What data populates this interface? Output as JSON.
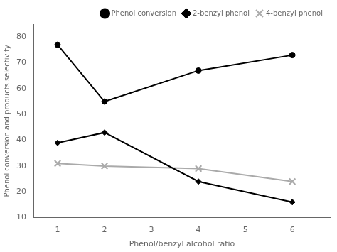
{
  "chart_data": {
    "type": "line",
    "xlabel": "Phenol/benzyl alcohol ratio",
    "ylabel": "Phenol conversion and products selectivity",
    "x": [
      1,
      2,
      4,
      6
    ],
    "series": [
      {
        "name": "Phenol conversion",
        "color": "#000000",
        "marker": "circle",
        "values": [
          77,
          55,
          67,
          73
        ]
      },
      {
        "name": "2-benzyl phenol",
        "color": "#000000",
        "marker": "diamond",
        "values": [
          39,
          43,
          24,
          16
        ]
      },
      {
        "name": "4-benzyl phenol",
        "color": "#aaaaaa",
        "marker": "x",
        "values": [
          31,
          30,
          29,
          24
        ]
      }
    ],
    "xlim": [
      0.5,
      6.8
    ],
    "xticks": [
      1,
      2,
      3,
      4,
      5,
      6
    ],
    "ylim": [
      10,
      85
    ],
    "yticks": [
      10,
      20,
      30,
      40,
      50,
      60,
      70,
      80
    ],
    "legend": "upper right",
    "grid": false
  }
}
